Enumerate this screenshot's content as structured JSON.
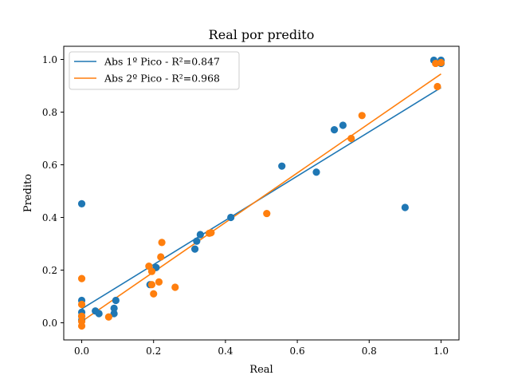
{
  "chart_data": {
    "type": "scatter",
    "title": "Real por predito",
    "xlabel": "Real",
    "ylabel": "Predito",
    "xlim": [
      -0.05,
      1.05
    ],
    "ylim": [
      -0.065,
      1.05
    ],
    "xticks": [
      0.0,
      0.2,
      0.4,
      0.6,
      0.8,
      1.0
    ],
    "xtick_labels": [
      "0.0",
      "0.2",
      "0.4",
      "0.6",
      "0.8",
      "1.0"
    ],
    "yticks": [
      0.0,
      0.2,
      0.4,
      0.6,
      0.8,
      1.0
    ],
    "ytick_labels": [
      "0.0",
      "0.2",
      "0.4",
      "0.6",
      "0.8",
      "1.0"
    ],
    "grid": false,
    "legend_position": "top-left",
    "series": [
      {
        "name": "Abs 1º Pico - R²=0.847",
        "color": "#1f77b4",
        "fit_line": [
          [
            0.0,
            0.053
          ],
          [
            1.0,
            0.893
          ]
        ],
        "points": [
          [
            0.0,
            0.452
          ],
          [
            0.0,
            0.085
          ],
          [
            0.0,
            0.04
          ],
          [
            0.0,
            0.025
          ],
          [
            0.0,
            0.01
          ],
          [
            0.038,
            0.045
          ],
          [
            0.048,
            0.035
          ],
          [
            0.09,
            0.055
          ],
          [
            0.09,
            0.035
          ],
          [
            0.095,
            0.085
          ],
          [
            0.19,
            0.145
          ],
          [
            0.207,
            0.21
          ],
          [
            0.315,
            0.28
          ],
          [
            0.32,
            0.31
          ],
          [
            0.33,
            0.335
          ],
          [
            0.415,
            0.4
          ],
          [
            0.557,
            0.595
          ],
          [
            0.653,
            0.572
          ],
          [
            0.703,
            0.733
          ],
          [
            0.727,
            0.75
          ],
          [
            0.9,
            0.438
          ],
          [
            0.98,
            0.997
          ],
          [
            1.0,
            0.997
          ],
          [
            1.0,
            0.985
          ]
        ]
      },
      {
        "name": "Abs 2º Pico - R²=0.968",
        "color": "#ff7f0e",
        "fit_line": [
          [
            0.0,
            0.005
          ],
          [
            1.0,
            0.945
          ]
        ],
        "points": [
          [
            0.0,
            0.168
          ],
          [
            0.0,
            0.07
          ],
          [
            0.0,
            0.025
          ],
          [
            0.0,
            0.005
          ],
          [
            0.0,
            -0.012
          ],
          [
            0.075,
            0.022
          ],
          [
            0.187,
            0.215
          ],
          [
            0.195,
            0.195
          ],
          [
            0.195,
            0.145
          ],
          [
            0.2,
            0.11
          ],
          [
            0.215,
            0.155
          ],
          [
            0.22,
            0.25
          ],
          [
            0.223,
            0.305
          ],
          [
            0.26,
            0.135
          ],
          [
            0.355,
            0.34
          ],
          [
            0.36,
            0.342
          ],
          [
            0.515,
            0.415
          ],
          [
            0.75,
            0.7
          ],
          [
            0.78,
            0.787
          ],
          [
            0.985,
            0.985
          ],
          [
            0.99,
            0.897
          ],
          [
            1.0,
            0.988
          ]
        ]
      }
    ]
  }
}
